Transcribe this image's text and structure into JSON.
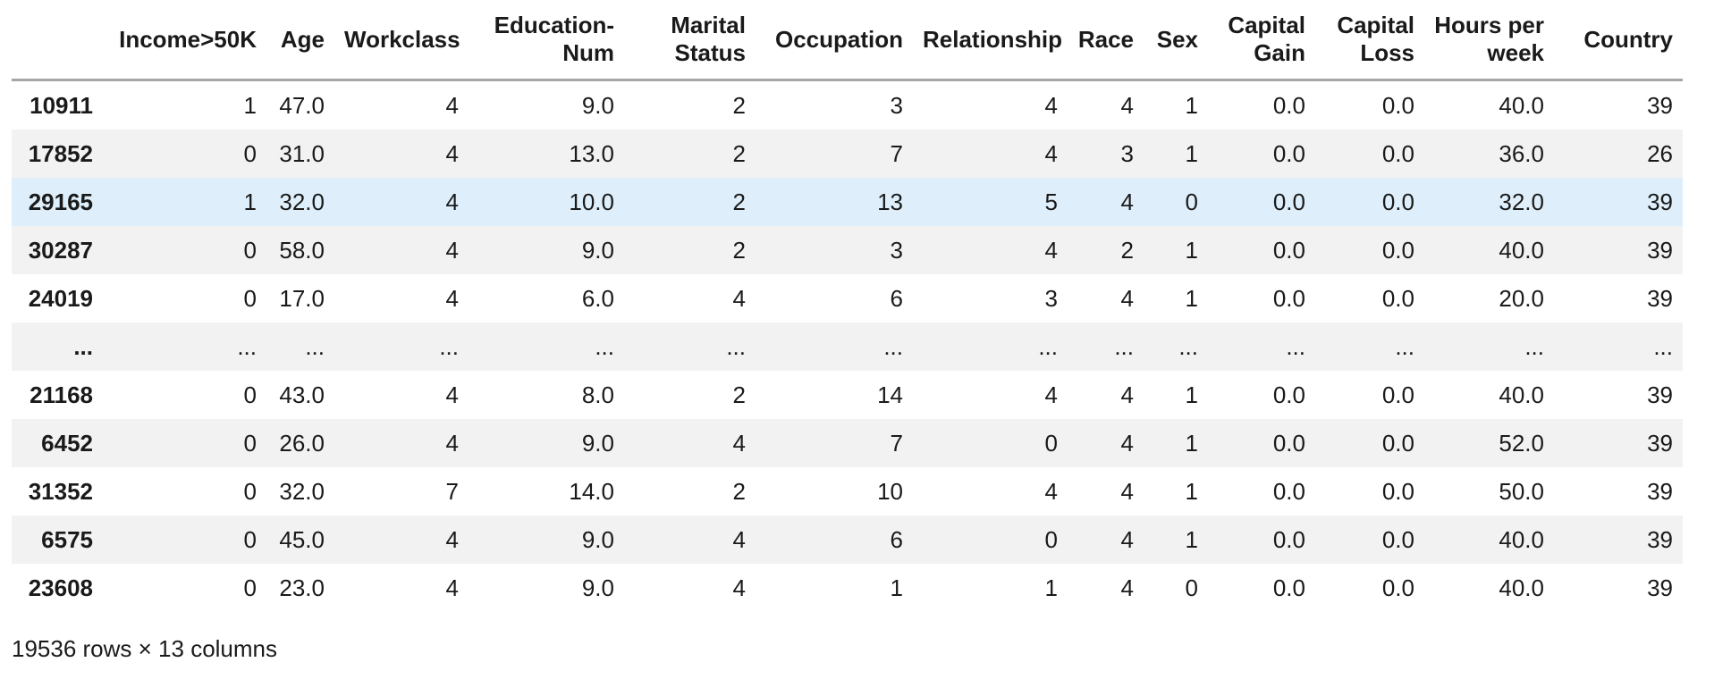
{
  "table": {
    "corner_label": "",
    "columns": [
      "Income>50K",
      "Age",
      "Workclass",
      "Education-Num",
      "Marital Status",
      "Occupation",
      "Relationship",
      "Race",
      "Sex",
      "Capital Gain",
      "Capital Loss",
      "Hours per week",
      "Country"
    ],
    "rows": [
      {
        "index": "10911",
        "values": [
          "1",
          "47.0",
          "4",
          "9.0",
          "2",
          "3",
          "4",
          "4",
          "1",
          "0.0",
          "0.0",
          "40.0",
          "39"
        ]
      },
      {
        "index": "17852",
        "values": [
          "0",
          "31.0",
          "4",
          "13.0",
          "2",
          "7",
          "4",
          "3",
          "1",
          "0.0",
          "0.0",
          "36.0",
          "26"
        ]
      },
      {
        "index": "29165",
        "values": [
          "1",
          "32.0",
          "4",
          "10.0",
          "2",
          "13",
          "5",
          "4",
          "0",
          "0.0",
          "0.0",
          "32.0",
          "39"
        ]
      },
      {
        "index": "30287",
        "values": [
          "0",
          "58.0",
          "4",
          "9.0",
          "2",
          "3",
          "4",
          "2",
          "1",
          "0.0",
          "0.0",
          "40.0",
          "39"
        ]
      },
      {
        "index": "24019",
        "values": [
          "0",
          "17.0",
          "4",
          "6.0",
          "4",
          "6",
          "3",
          "4",
          "1",
          "0.0",
          "0.0",
          "20.0",
          "39"
        ]
      },
      {
        "index": "...",
        "values": [
          "...",
          "...",
          "...",
          "...",
          "...",
          "...",
          "...",
          "...",
          "...",
          "...",
          "...",
          "...",
          "..."
        ]
      },
      {
        "index": "21168",
        "values": [
          "0",
          "43.0",
          "4",
          "8.0",
          "2",
          "14",
          "4",
          "4",
          "1",
          "0.0",
          "0.0",
          "40.0",
          "39"
        ]
      },
      {
        "index": "6452",
        "values": [
          "0",
          "26.0",
          "4",
          "9.0",
          "4",
          "7",
          "0",
          "4",
          "1",
          "0.0",
          "0.0",
          "52.0",
          "39"
        ]
      },
      {
        "index": "31352",
        "values": [
          "0",
          "32.0",
          "7",
          "14.0",
          "2",
          "10",
          "4",
          "4",
          "1",
          "0.0",
          "0.0",
          "50.0",
          "39"
        ]
      },
      {
        "index": "6575",
        "values": [
          "0",
          "45.0",
          "4",
          "9.0",
          "4",
          "6",
          "0",
          "4",
          "1",
          "0.0",
          "0.0",
          "40.0",
          "39"
        ]
      },
      {
        "index": "23608",
        "values": [
          "0",
          "23.0",
          "4",
          "9.0",
          "4",
          "1",
          "1",
          "4",
          "0",
          "0.0",
          "0.0",
          "40.0",
          "39"
        ]
      }
    ],
    "highlighted_row": 2,
    "footer": "19536 rows × 13 columns"
  },
  "colors": {
    "stripe_row_background": "#f2f2f2",
    "highlight_row_background": "#deeffb",
    "header_rule": "#a6a6a6",
    "text": "#1a1a1a"
  }
}
